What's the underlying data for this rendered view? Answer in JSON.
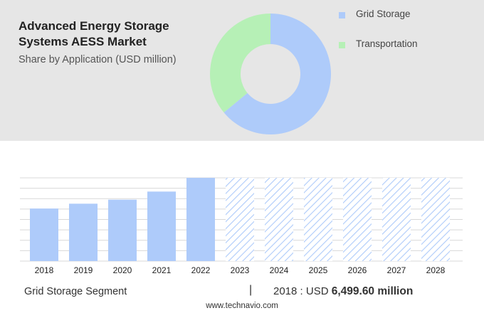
{
  "header": {
    "title": "Advanced Energy Storage Systems AESS Market",
    "subtitle": "Share by Application (USD million)"
  },
  "legend": [
    {
      "label": "Grid Storage",
      "color": "#aecbfa"
    },
    {
      "label": "Transportation",
      "color": "#b6f0b6"
    }
  ],
  "chart_data": [
    {
      "type": "pie",
      "categories": [
        "Grid Storage",
        "Transportation"
      ],
      "values": [
        64,
        36
      ],
      "colors": [
        "#aecbfa",
        "#b6f0b6"
      ]
    },
    {
      "type": "bar",
      "categories": [
        "2018",
        "2019",
        "2020",
        "2021",
        "2022",
        "2023",
        "2024",
        "2025",
        "2026",
        "2027",
        "2028"
      ],
      "values": [
        6.5,
        7.1,
        7.6,
        8.6,
        10.3,
        10.3,
        10.3,
        10.3,
        10.3,
        10.3,
        10.3
      ],
      "forecast_from": "2023",
      "ylim": [
        0,
        10.3
      ],
      "grid": true,
      "bar_color": "#aecbfa",
      "forecast_color": "#aecbfa"
    }
  ],
  "footer": {
    "segment": "Grid Storage Segment",
    "separator": "|",
    "year_label": "2018 : USD",
    "value": "6,499.60 million",
    "source": "www.technavio.com"
  }
}
